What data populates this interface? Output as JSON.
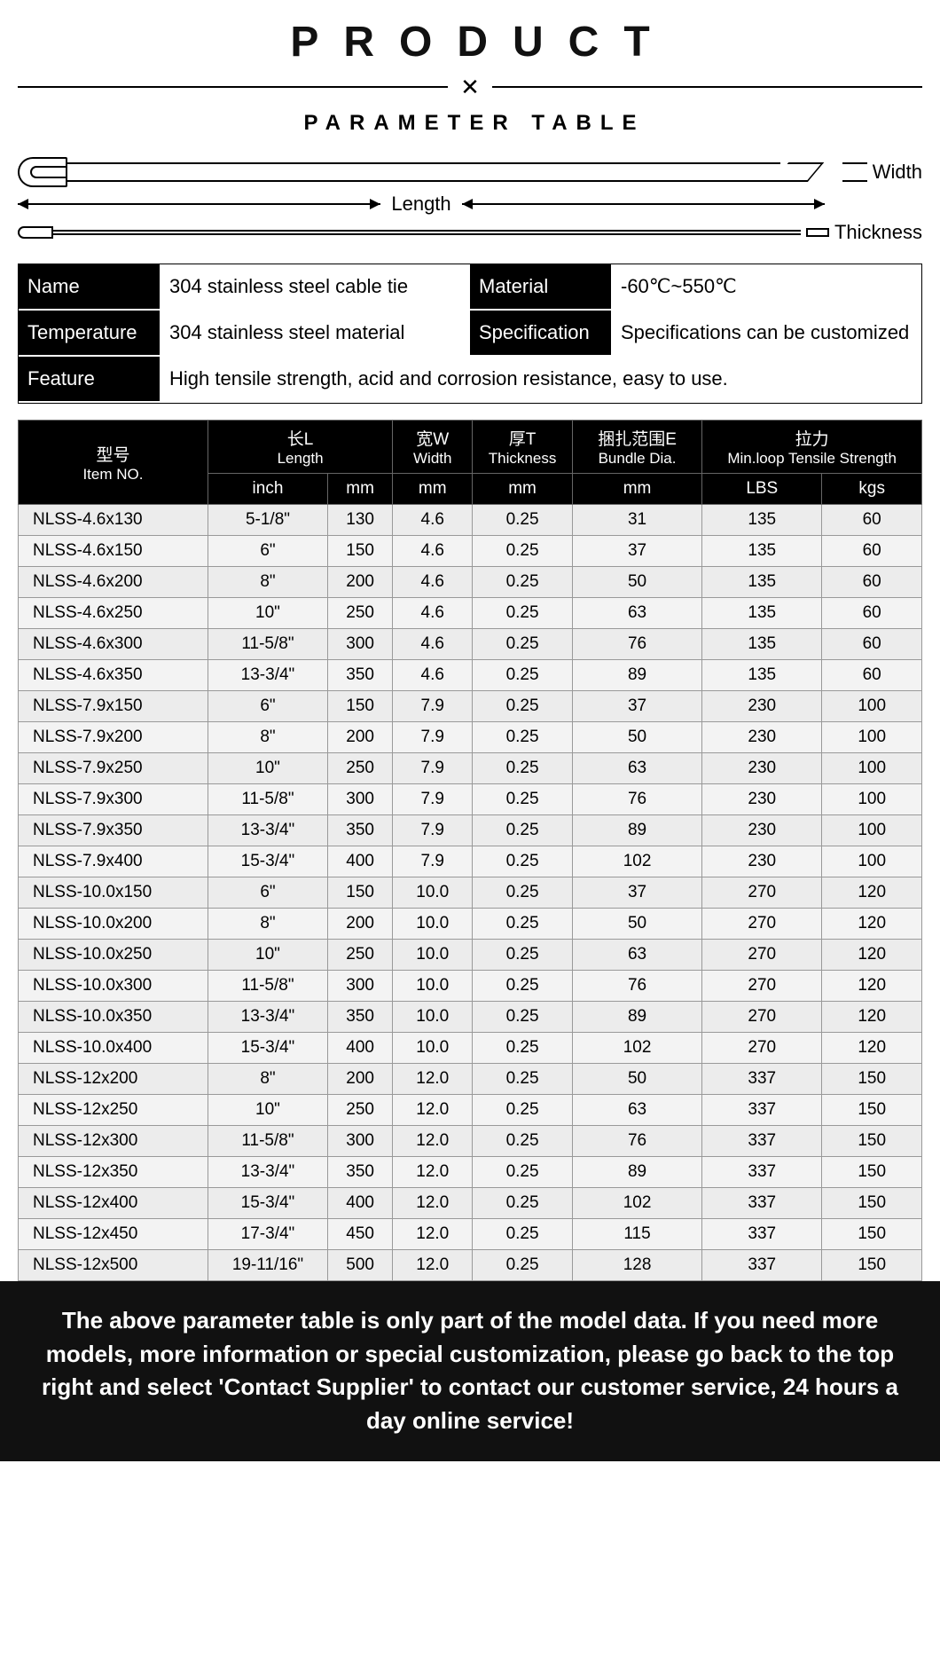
{
  "header": {
    "title": "PRODUCT",
    "subtitle": "PARAMETER TABLE"
  },
  "diagram": {
    "width_label": "Width",
    "length_label": "Length",
    "thickness_label": "Thickness"
  },
  "info": {
    "rows": [
      {
        "label": "Name",
        "value": "304 stainless steel cable tie"
      },
      {
        "label": "Material",
        "value": "-60℃~550℃"
      },
      {
        "label": "Temperature",
        "value": "304 stainless steel material"
      },
      {
        "label": "Specification",
        "value": "Specifications can be customized"
      },
      {
        "label": "Feature",
        "value": "High tensile strength, acid and corrosion resistance, easy to use.",
        "span": 3
      }
    ]
  },
  "table": {
    "headers": {
      "item": {
        "cn": "型号",
        "en": "Item NO."
      },
      "length": {
        "cn": "长L",
        "en": "Length"
      },
      "width": {
        "cn": "宽W",
        "en": "Width"
      },
      "thickness": {
        "cn": "厚T",
        "en": "Thickness"
      },
      "bundle": {
        "cn": "捆扎范围E",
        "en": "Bundle Dia."
      },
      "tensile": {
        "cn": "拉力",
        "en": "Min.loop Tensile Strength"
      }
    },
    "units": {
      "length_inch": "inch",
      "length_mm": "mm",
      "width_mm": "mm",
      "thickness_mm": "mm",
      "bundle_mm": "mm",
      "tensile_lbs": "LBS",
      "tensile_kgs": "kgs"
    },
    "rows": [
      {
        "item": "NLSS-4.6x130",
        "inch": "5-1/8\"",
        "mm": "130",
        "w": "4.6",
        "t": "0.25",
        "b": "31",
        "lbs": "135",
        "kgs": "60"
      },
      {
        "item": "NLSS-4.6x150",
        "inch": "6\"",
        "mm": "150",
        "w": "4.6",
        "t": "0.25",
        "b": "37",
        "lbs": "135",
        "kgs": "60"
      },
      {
        "item": "NLSS-4.6x200",
        "inch": "8\"",
        "mm": "200",
        "w": "4.6",
        "t": "0.25",
        "b": "50",
        "lbs": "135",
        "kgs": "60"
      },
      {
        "item": "NLSS-4.6x250",
        "inch": "10\"",
        "mm": "250",
        "w": "4.6",
        "t": "0.25",
        "b": "63",
        "lbs": "135",
        "kgs": "60"
      },
      {
        "item": "NLSS-4.6x300",
        "inch": "11-5/8\"",
        "mm": "300",
        "w": "4.6",
        "t": "0.25",
        "b": "76",
        "lbs": "135",
        "kgs": "60"
      },
      {
        "item": "NLSS-4.6x350",
        "inch": "13-3/4\"",
        "mm": "350",
        "w": "4.6",
        "t": "0.25",
        "b": "89",
        "lbs": "135",
        "kgs": "60"
      },
      {
        "item": "NLSS-7.9x150",
        "inch": "6\"",
        "mm": "150",
        "w": "7.9",
        "t": "0.25",
        "b": "37",
        "lbs": "230",
        "kgs": "100"
      },
      {
        "item": "NLSS-7.9x200",
        "inch": "8\"",
        "mm": "200",
        "w": "7.9",
        "t": "0.25",
        "b": "50",
        "lbs": "230",
        "kgs": "100"
      },
      {
        "item": "NLSS-7.9x250",
        "inch": "10\"",
        "mm": "250",
        "w": "7.9",
        "t": "0.25",
        "b": "63",
        "lbs": "230",
        "kgs": "100"
      },
      {
        "item": "NLSS-7.9x300",
        "inch": "11-5/8\"",
        "mm": "300",
        "w": "7.9",
        "t": "0.25",
        "b": "76",
        "lbs": "230",
        "kgs": "100"
      },
      {
        "item": "NLSS-7.9x350",
        "inch": "13-3/4\"",
        "mm": "350",
        "w": "7.9",
        "t": "0.25",
        "b": "89",
        "lbs": "230",
        "kgs": "100"
      },
      {
        "item": "NLSS-7.9x400",
        "inch": "15-3/4\"",
        "mm": "400",
        "w": "7.9",
        "t": "0.25",
        "b": "102",
        "lbs": "230",
        "kgs": "100"
      },
      {
        "item": "NLSS-10.0x150",
        "inch": "6\"",
        "mm": "150",
        "w": "10.0",
        "t": "0.25",
        "b": "37",
        "lbs": "270",
        "kgs": "120"
      },
      {
        "item": "NLSS-10.0x200",
        "inch": "8\"",
        "mm": "200",
        "w": "10.0",
        "t": "0.25",
        "b": "50",
        "lbs": "270",
        "kgs": "120"
      },
      {
        "item": "NLSS-10.0x250",
        "inch": "10\"",
        "mm": "250",
        "w": "10.0",
        "t": "0.25",
        "b": "63",
        "lbs": "270",
        "kgs": "120"
      },
      {
        "item": "NLSS-10.0x300",
        "inch": "11-5/8\"",
        "mm": "300",
        "w": "10.0",
        "t": "0.25",
        "b": "76",
        "lbs": "270",
        "kgs": "120"
      },
      {
        "item": "NLSS-10.0x350",
        "inch": "13-3/4\"",
        "mm": "350",
        "w": "10.0",
        "t": "0.25",
        "b": "89",
        "lbs": "270",
        "kgs": "120"
      },
      {
        "item": "NLSS-10.0x400",
        "inch": "15-3/4\"",
        "mm": "400",
        "w": "10.0",
        "t": "0.25",
        "b": "102",
        "lbs": "270",
        "kgs": "120"
      },
      {
        "item": "NLSS-12x200",
        "inch": "8\"",
        "mm": "200",
        "w": "12.0",
        "t": "0.25",
        "b": "50",
        "lbs": "337",
        "kgs": "150"
      },
      {
        "item": "NLSS-12x250",
        "inch": "10\"",
        "mm": "250",
        "w": "12.0",
        "t": "0.25",
        "b": "63",
        "lbs": "337",
        "kgs": "150"
      },
      {
        "item": "NLSS-12x300",
        "inch": "11-5/8\"",
        "mm": "300",
        "w": "12.0",
        "t": "0.25",
        "b": "76",
        "lbs": "337",
        "kgs": "150"
      },
      {
        "item": "NLSS-12x350",
        "inch": "13-3/4\"",
        "mm": "350",
        "w": "12.0",
        "t": "0.25",
        "b": "89",
        "lbs": "337",
        "kgs": "150"
      },
      {
        "item": "NLSS-12x400",
        "inch": "15-3/4\"",
        "mm": "400",
        "w": "12.0",
        "t": "0.25",
        "b": "102",
        "lbs": "337",
        "kgs": "150"
      },
      {
        "item": "NLSS-12x450",
        "inch": "17-3/4\"",
        "mm": "450",
        "w": "12.0",
        "t": "0.25",
        "b": "115",
        "lbs": "337",
        "kgs": "150"
      },
      {
        "item": "NLSS-12x500",
        "inch": "19-11/16\"",
        "mm": "500",
        "w": "12.0",
        "t": "0.25",
        "b": "128",
        "lbs": "337",
        "kgs": "150"
      }
    ]
  },
  "footer": {
    "text": "The above parameter table is only part of the model data. If you need more models, more information or special customization, please go back to the top right and select 'Contact Supplier' to contact our customer service, 24 hours a day online service!"
  },
  "style": {
    "header_bg": "#000000",
    "header_fg": "#ffffff",
    "row_odd_bg": "#ececec",
    "row_even_bg": "#f3f3f3",
    "border_color": "#999999",
    "title_fontsize": 48,
    "subtitle_fontsize": 24,
    "body_fontsize": 19,
    "footer_bg": "#111111",
    "footer_fg": "#ffffff"
  }
}
